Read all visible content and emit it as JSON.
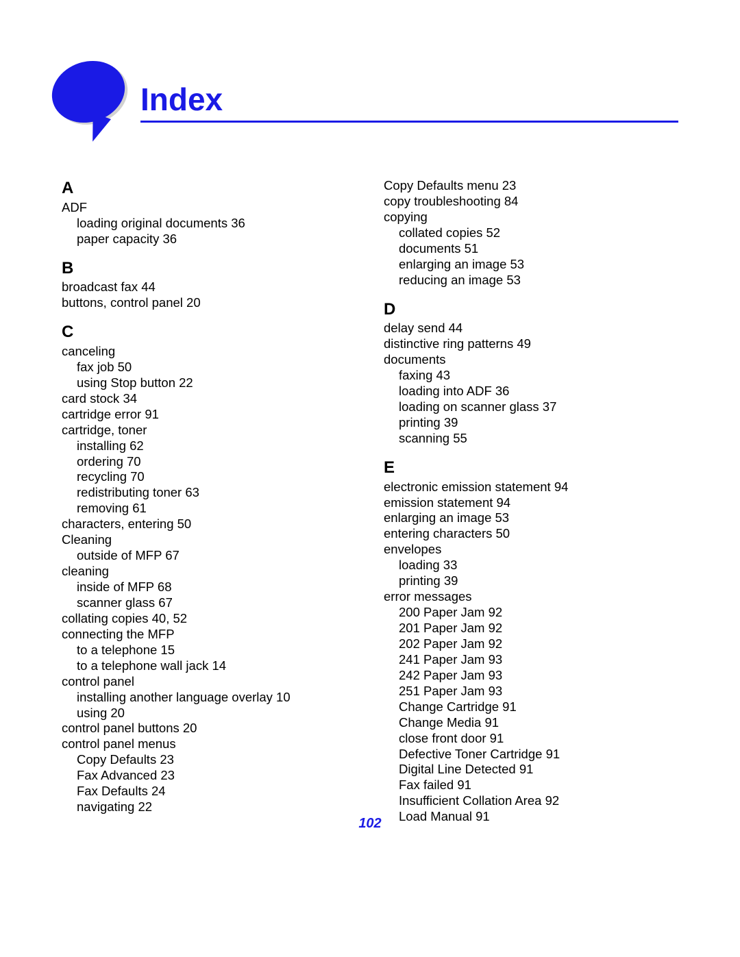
{
  "title": "Index",
  "page_number": "102",
  "colors": {
    "accent": "#1a1ae5",
    "text": "#000000",
    "background": "#ffffff"
  },
  "left_column": [
    {
      "type": "letter",
      "text": "A"
    },
    {
      "type": "entry",
      "text": "ADF"
    },
    {
      "type": "sub",
      "text": "loading original documents  36"
    },
    {
      "type": "sub",
      "text": "paper capacity  36"
    },
    {
      "type": "letter",
      "text": "B"
    },
    {
      "type": "entry",
      "text": "broadcast fax  44"
    },
    {
      "type": "entry",
      "text": "buttons, control panel  20"
    },
    {
      "type": "letter",
      "text": "C"
    },
    {
      "type": "entry",
      "text": "canceling"
    },
    {
      "type": "sub",
      "text": "fax job  50"
    },
    {
      "type": "sub",
      "text": "using Stop button  22"
    },
    {
      "type": "entry",
      "text": "card stock  34"
    },
    {
      "type": "entry",
      "text": "cartridge error  91"
    },
    {
      "type": "entry",
      "text": "cartridge, toner"
    },
    {
      "type": "sub",
      "text": "installing  62"
    },
    {
      "type": "sub",
      "text": "ordering  70"
    },
    {
      "type": "sub",
      "text": "recycling  70"
    },
    {
      "type": "sub",
      "text": "redistributing toner  63"
    },
    {
      "type": "sub",
      "text": "removing  61"
    },
    {
      "type": "entry",
      "text": "characters, entering  50"
    },
    {
      "type": "entry",
      "text": "Cleaning"
    },
    {
      "type": "sub",
      "text": "outside of MFP  67"
    },
    {
      "type": "entry",
      "text": "cleaning"
    },
    {
      "type": "sub",
      "text": "inside of MFP  68"
    },
    {
      "type": "sub",
      "text": "scanner glass  67"
    },
    {
      "type": "entry",
      "text": "collating copies  40, 52"
    },
    {
      "type": "entry",
      "text": "connecting the MFP"
    },
    {
      "type": "sub",
      "text": "to a telephone  15"
    },
    {
      "type": "sub",
      "text": "to a telephone wall jack  14"
    },
    {
      "type": "entry",
      "text": "control panel"
    },
    {
      "type": "sub",
      "text": "installing another language overlay  10"
    },
    {
      "type": "sub",
      "text": "using  20"
    },
    {
      "type": "entry",
      "text": "control panel buttons  20"
    },
    {
      "type": "entry",
      "text": "control panel menus"
    },
    {
      "type": "sub",
      "text": "Copy Defaults  23"
    },
    {
      "type": "sub",
      "text": "Fax Advanced  23"
    },
    {
      "type": "sub",
      "text": "Fax Defaults  24"
    },
    {
      "type": "sub",
      "text": "navigating  22"
    }
  ],
  "right_column": [
    {
      "type": "entry",
      "text": "Copy Defaults menu  23"
    },
    {
      "type": "entry",
      "text": "copy troubleshooting  84"
    },
    {
      "type": "entry",
      "text": "copying"
    },
    {
      "type": "sub",
      "text": "collated copies  52"
    },
    {
      "type": "sub",
      "text": "documents  51"
    },
    {
      "type": "sub",
      "text": "enlarging an image  53"
    },
    {
      "type": "sub",
      "text": "reducing an image  53"
    },
    {
      "type": "letter",
      "text": "D"
    },
    {
      "type": "entry",
      "text": "delay send  44"
    },
    {
      "type": "entry",
      "text": "distinctive ring patterns  49"
    },
    {
      "type": "entry",
      "text": "documents"
    },
    {
      "type": "sub",
      "text": "faxing  43"
    },
    {
      "type": "sub",
      "text": "loading into ADF  36"
    },
    {
      "type": "sub",
      "text": "loading on scanner glass  37"
    },
    {
      "type": "sub",
      "text": "printing  39"
    },
    {
      "type": "sub",
      "text": "scanning  55"
    },
    {
      "type": "letter",
      "text": "E"
    },
    {
      "type": "entry",
      "text": "electronic emission statement  94"
    },
    {
      "type": "entry",
      "text": "emission statement  94"
    },
    {
      "type": "entry",
      "text": "enlarging an image  53"
    },
    {
      "type": "entry",
      "text": "entering characters  50"
    },
    {
      "type": "entry",
      "text": "envelopes"
    },
    {
      "type": "sub",
      "text": "loading  33"
    },
    {
      "type": "sub",
      "text": "printing  39"
    },
    {
      "type": "entry",
      "text": "error messages"
    },
    {
      "type": "sub",
      "text": "200 Paper Jam  92"
    },
    {
      "type": "sub",
      "text": "201 Paper Jam  92"
    },
    {
      "type": "sub",
      "text": "202 Paper Jam  92"
    },
    {
      "type": "sub",
      "text": "241 Paper Jam  93"
    },
    {
      "type": "sub",
      "text": "242 Paper Jam  93"
    },
    {
      "type": "sub",
      "text": "251 Paper Jam  93"
    },
    {
      "type": "sub",
      "text": "Change Cartridge  91"
    },
    {
      "type": "sub",
      "text": "Change Media  91"
    },
    {
      "type": "sub",
      "text": "close front door  91"
    },
    {
      "type": "sub",
      "text": "Defective Toner Cartridge  91"
    },
    {
      "type": "sub",
      "text": "Digital Line Detected  91"
    },
    {
      "type": "sub",
      "text": "Fax failed  91"
    },
    {
      "type": "sub",
      "text": "Insufficient Collation Area  92"
    },
    {
      "type": "sub",
      "text": "Load Manual  91"
    }
  ]
}
